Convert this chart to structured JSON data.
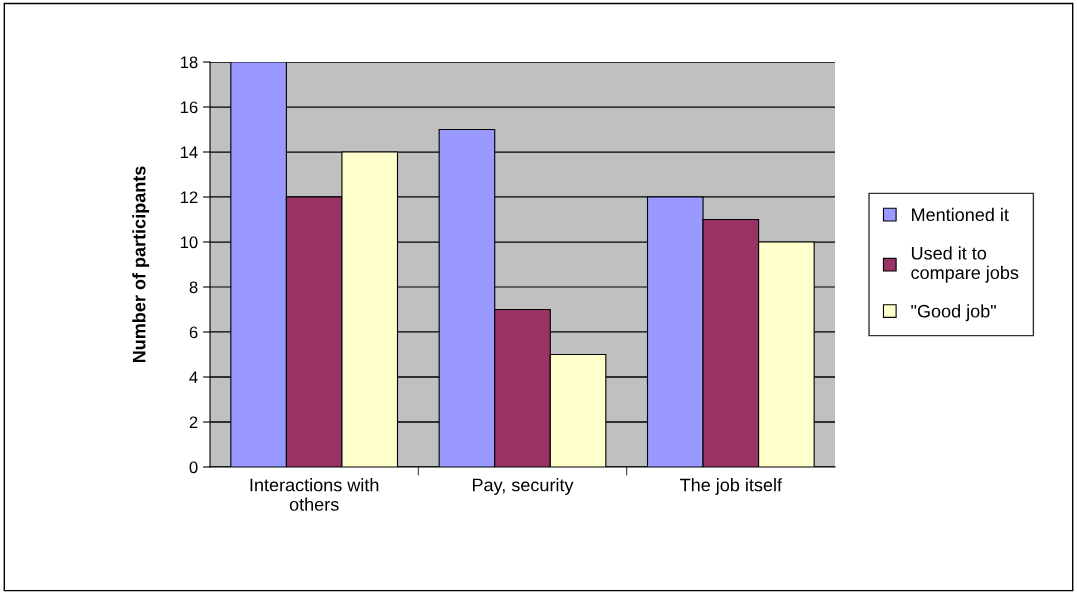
{
  "chart_data": {
    "type": "bar",
    "ylabel": "Number of participants",
    "categories": [
      "Interactions with\nothers",
      "Pay, security",
      "The job itself"
    ],
    "series": [
      {
        "name": "Mentioned it",
        "color": "#9999ff",
        "values": [
          18,
          15,
          12
        ]
      },
      {
        "name": "Used it to\ncompare jobs",
        "color": "#993366",
        "values": [
          12,
          7,
          11
        ]
      },
      {
        "name": "\"Good job\"",
        "color": "#ffffcc",
        "values": [
          14,
          5,
          10
        ]
      }
    ],
    "ylim": [
      0,
      18
    ],
    "yticks": [
      0,
      2,
      4,
      6,
      8,
      10,
      12,
      14,
      16,
      18
    ],
    "grid": "y",
    "legend": "right"
  }
}
